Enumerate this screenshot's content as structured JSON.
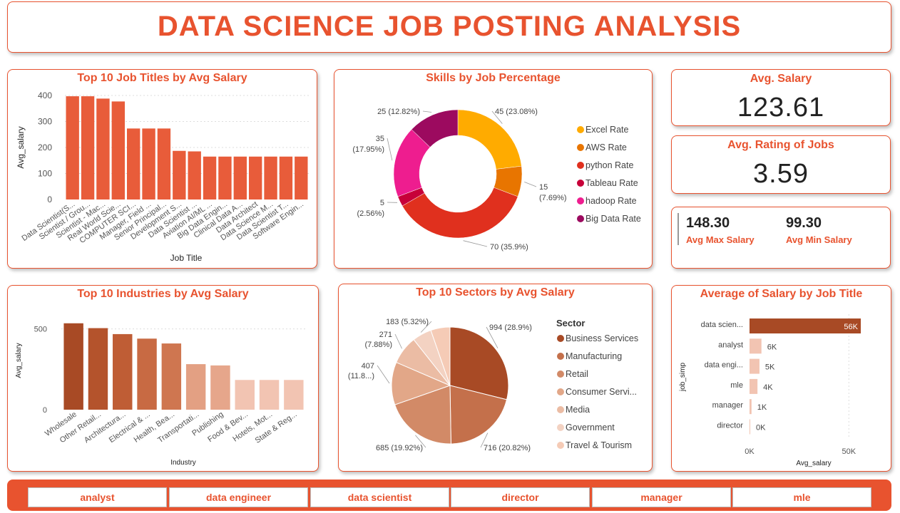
{
  "header": {
    "title": "DATA SCIENCE JOB POSTING ANALYSIS"
  },
  "colors": {
    "accent": "#e8532f",
    "bar": "#e85c3a",
    "text": "#222222"
  },
  "kpis": {
    "avg_salary": {
      "title": "Avg. Salary",
      "value": "123.61"
    },
    "avg_rating": {
      "title": "Avg. Rating of Jobs",
      "value": "3.59"
    },
    "max_salary": {
      "value": "148.30",
      "label": "Avg Max Salary"
    },
    "min_salary": {
      "value": "99.30",
      "label": "Avg Min Salary"
    }
  },
  "chart_data": [
    {
      "id": "job_titles",
      "type": "bar",
      "title": "Top 10 Job Titles by Avg Salary",
      "xlabel": "Job Title",
      "ylabel": "Avg_salary",
      "ylim": [
        0,
        400
      ],
      "ticks": [
        0,
        100,
        200,
        300,
        400
      ],
      "categories": [
        "Data Scientist(S...",
        "Scientist / Grou...",
        "Scientist - Mac...",
        "Real World Scie...",
        "COMPUTER SCI...",
        "Manager, Field ...",
        "Senior Principal...",
        "Development S...",
        "Data Scientist ...",
        "Aviation AI/ML ...",
        "Big Data Engin...",
        "Clinical Data A...",
        "Data Architect",
        "Data Science M...",
        "Data Scientist T...",
        "Software Engin..."
      ],
      "values": [
        397,
        397,
        388,
        377,
        273,
        273,
        273,
        187,
        185,
        165,
        165,
        165,
        165,
        165,
        165,
        165
      ],
      "color": "#e85c3a"
    },
    {
      "id": "skills",
      "type": "pie",
      "donut": true,
      "title": "Skills by Job Percentage",
      "labels": [
        "Excel Rate",
        "AWS Rate",
        "python Rate",
        "Tableau Rate",
        "hadoop Rate",
        "Big Data Rate"
      ],
      "values": [
        45,
        15,
        70,
        5,
        35,
        25
      ],
      "data_labels": [
        "45 (23.08%)",
        "15 (7.69%)",
        "70 (35.9%)",
        "5 (2.56%)",
        "35 (17.95%)",
        "25 (12.82%)"
      ],
      "colors": [
        "#ffab00",
        "#e87500",
        "#e0301e",
        "#c70039",
        "#ee1d8f",
        "#9c0a5f"
      ]
    },
    {
      "id": "industries",
      "type": "bar",
      "title": "Top 10 Industries by Avg Salary",
      "xlabel": "Industry",
      "ylabel": "Avg_salary",
      "ylim": [
        0,
        600
      ],
      "ticks": [
        0,
        500
      ],
      "categories": [
        "Wholesale",
        "Other Retail...",
        "Architectura...",
        "Electrical & ...",
        "Health, Bea...",
        "Transportati...",
        "Publishing",
        "Food & Bev...",
        "Hotels, Mot...",
        "State & Reg..."
      ],
      "values": [
        535,
        505,
        468,
        440,
        410,
        282,
        274,
        184,
        184,
        184
      ],
      "colors": [
        "#a84a25",
        "#b4532c",
        "#bf5d35",
        "#c86a43",
        "#cf7650",
        "#e3a083",
        "#e6a68b",
        "#f2c4b2",
        "#f2c4b2",
        "#f2c4b2"
      ]
    },
    {
      "id": "sectors",
      "type": "pie",
      "title": "Top 10 Sectors by Avg Salary",
      "legend_title": "Sector",
      "labels": [
        "Business Services",
        "Manufacturing",
        "Retail",
        "Consumer Servi...",
        "Media",
        "Government",
        "Travel & Tourism"
      ],
      "values": [
        994,
        716,
        685,
        407,
        271,
        183,
        183
      ],
      "data_labels": [
        "994 (28.9%)",
        "716 (20.82%)",
        "685 (19.92%)",
        "407 (11.8...)",
        "271 (7.88%)",
        "183 (5.32%)",
        ""
      ],
      "colors": [
        "#a84a25",
        "#c4704b",
        "#d28a67",
        "#e2a788",
        "#ebbca4",
        "#f3d2c2",
        "#f5cbb6"
      ]
    },
    {
      "id": "salary_by_title",
      "type": "bar",
      "orientation": "horizontal",
      "title": "Average of Salary by Job Title",
      "xlabel": "Avg_salary",
      "ylabel": "job_simp",
      "xlim": [
        0,
        56000
      ],
      "ticks": [
        0,
        50000
      ],
      "tick_labels": [
        "0K",
        "50K"
      ],
      "categories": [
        "data scien...",
        "analyst",
        "data engi...",
        "mle",
        "manager",
        "director"
      ],
      "values": [
        56000,
        6000,
        5000,
        4000,
        1000,
        0
      ],
      "data_labels": [
        "56K",
        "6K",
        "5K",
        "4K",
        "1K",
        "0K"
      ],
      "colors": [
        "#a84a25",
        "#f2c4b2",
        "#f2c4b2",
        "#f2c4b2",
        "#f2c4b2",
        "#f2c4b2"
      ]
    }
  ],
  "slicer": {
    "items": [
      "analyst",
      "data engineer",
      "data scientist",
      "director",
      "manager",
      "mle"
    ]
  }
}
